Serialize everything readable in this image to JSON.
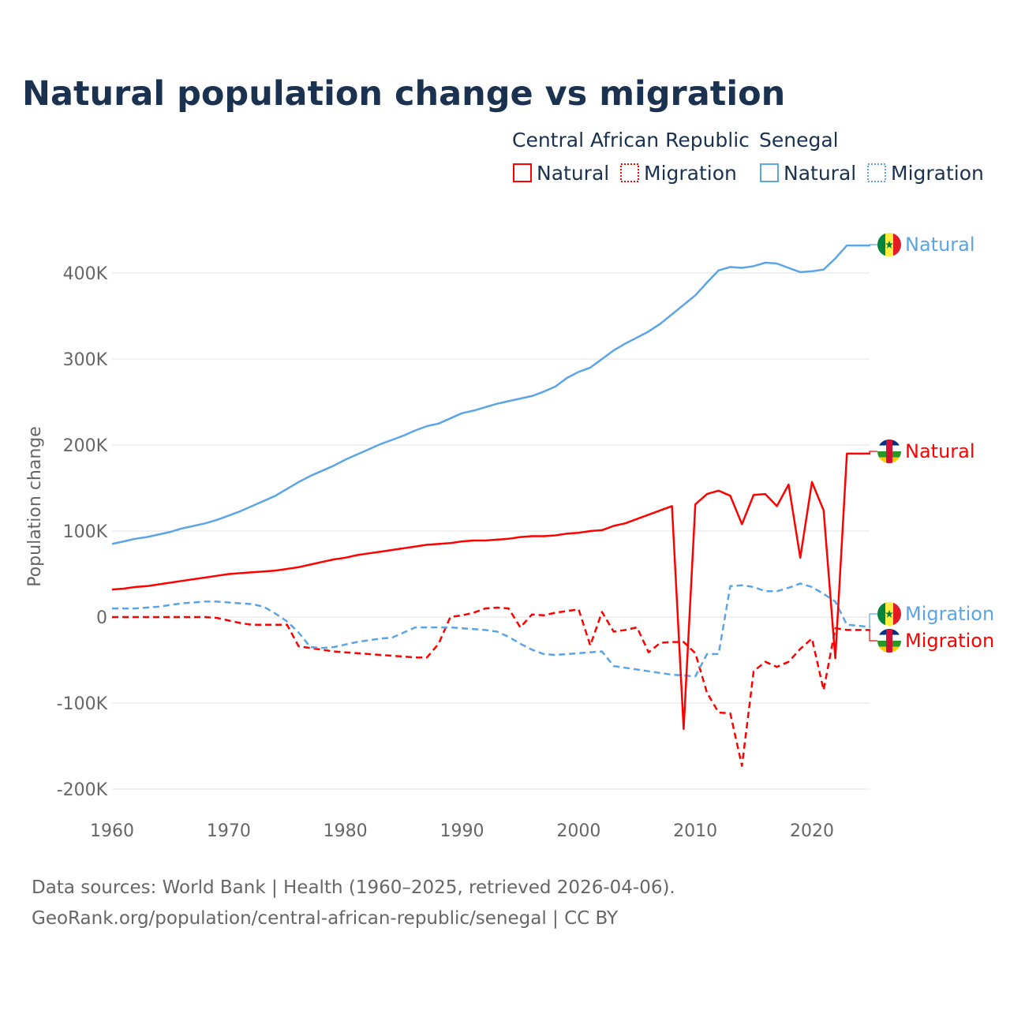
{
  "chart_data": {
    "type": "line",
    "title": "Natural population change vs migration",
    "ylabel": "Population change",
    "xlabel": "",
    "xlim": [
      1960,
      2025
    ],
    "ylim": [
      -200000,
      440000
    ],
    "x_ticks": [
      1960,
      1970,
      1980,
      1990,
      2000,
      2010,
      2020
    ],
    "x_tick_labels": [
      "1960",
      "1970",
      "1980",
      "1990",
      "2000",
      "2010",
      "2020"
    ],
    "y_ticks": [
      -200000,
      -100000,
      0,
      100000,
      200000,
      300000,
      400000
    ],
    "y_tick_labels": [
      "-200K",
      "-100K",
      "0",
      "100K",
      "200K",
      "300K",
      "400K"
    ],
    "grid": true,
    "legend_position": "top-right",
    "legend": {
      "groups": [
        {
          "country": "Central African Republic",
          "items": [
            {
              "label": "Natural",
              "style": "solid"
            },
            {
              "label": "Migration",
              "style": "dotted"
            }
          ]
        },
        {
          "country": "Senegal",
          "items": [
            {
              "label": "Natural",
              "style": "solid"
            },
            {
              "label": "Migration",
              "style": "dotted"
            }
          ]
        }
      ]
    },
    "x_start": 1960,
    "series": [
      {
        "name": "Senegal Natural",
        "country": "Senegal",
        "kind": "Natural",
        "color": "#5ba4e6",
        "dash": false,
        "end_label": "Natural",
        "flag": "senegal",
        "values": [
          85000,
          88000,
          91000,
          93000,
          96000,
          99000,
          103000,
          106000,
          109000,
          113000,
          118000,
          123000,
          129000,
          135000,
          141000,
          149000,
          157000,
          164000,
          170000,
          176000,
          183000,
          189000,
          195000,
          201000,
          206000,
          211000,
          217000,
          222000,
          225000,
          231000,
          237000,
          240000,
          244000,
          248000,
          251000,
          254000,
          257000,
          262000,
          268000,
          278000,
          285000,
          290000,
          300000,
          310000,
          318000,
          325000,
          332000,
          341000,
          352000,
          363000,
          374000,
          389000,
          403000,
          407000,
          406000,
          408000,
          412000,
          411000,
          406000,
          401000,
          402000,
          404000,
          417000,
          432000,
          432000,
          432000
        ]
      },
      {
        "name": "Central African Republic Natural",
        "country": "Central African Republic",
        "kind": "Natural",
        "color": "#ff0000",
        "dash": false,
        "end_label": "Natural",
        "flag": "car",
        "values": [
          32000,
          33000,
          35000,
          36000,
          38000,
          40000,
          42000,
          44000,
          46000,
          48000,
          50000,
          51000,
          52000,
          53000,
          54000,
          56000,
          58000,
          61000,
          64000,
          67000,
          69000,
          72000,
          74000,
          76000,
          78000,
          80000,
          82000,
          84000,
          85000,
          86000,
          88000,
          89000,
          89000,
          90000,
          91000,
          93000,
          94000,
          94000,
          95000,
          97000,
          98000,
          100000,
          101000,
          106000,
          109000,
          114000,
          119000,
          124000,
          129000,
          -130000,
          131000,
          143000,
          147000,
          141000,
          108000,
          142000,
          143000,
          129000,
          154000,
          69000,
          157000,
          124000,
          -48000,
          190000,
          190000,
          190000
        ]
      },
      {
        "name": "Senegal Migration",
        "country": "Senegal",
        "kind": "Migration",
        "color": "#5ba4e6",
        "dash": true,
        "end_label": "Migration",
        "flag": "senegal",
        "values": [
          10000,
          10000,
          10000,
          11000,
          12000,
          14000,
          16000,
          17000,
          18000,
          18000,
          17000,
          16000,
          15000,
          12000,
          4000,
          -5000,
          -18000,
          -35000,
          -36000,
          -35000,
          -32000,
          -29000,
          -27000,
          -25000,
          -24000,
          -18000,
          -12000,
          -12000,
          -12000,
          -12000,
          -13000,
          -14000,
          -15000,
          -17000,
          -23000,
          -31000,
          -38000,
          -43000,
          -44000,
          -43000,
          -42000,
          -41000,
          -40000,
          -57000,
          -59000,
          -61000,
          -63000,
          -65000,
          -67000,
          -68000,
          -69000,
          -43000,
          -43000,
          36000,
          37000,
          35000,
          30000,
          30000,
          34000,
          39000,
          35000,
          27000,
          18000,
          -9000,
          -10000,
          -12000
        ]
      },
      {
        "name": "Central African Republic Migration",
        "country": "Central African Republic",
        "kind": "Migration",
        "color": "#ff0000",
        "dash": true,
        "end_label": "Migration",
        "flag": "car",
        "values": [
          0,
          0,
          0,
          0,
          0,
          0,
          0,
          0,
          0,
          -1000,
          -4000,
          -7000,
          -9000,
          -9000,
          -9000,
          -9000,
          -34000,
          -36000,
          -38000,
          -40000,
          -41000,
          -42000,
          -43000,
          -44000,
          -45000,
          -46000,
          -47000,
          -47000,
          -31000,
          0,
          2000,
          5000,
          10000,
          11000,
          10000,
          -12000,
          3000,
          2000,
          5000,
          7000,
          9000,
          -33000,
          6000,
          -17000,
          -15000,
          -12000,
          -41000,
          -30000,
          -29000,
          -29000,
          -42000,
          -88000,
          -111000,
          -112000,
          -173000,
          -63000,
          -52000,
          -58000,
          -52000,
          -37000,
          -25000,
          -85000,
          -13000,
          -15000,
          -15000,
          -15000
        ]
      }
    ]
  },
  "source": {
    "line1": "Data sources: World Bank | Health (1960–2025, retrieved 2026-04-06).",
    "line2": "GeoRank.org/population/central-african-republic/senegal | CC BY"
  },
  "colors": {
    "car": "#ff0000",
    "senegal": "#5ba4e6",
    "title": "#1a3150"
  }
}
